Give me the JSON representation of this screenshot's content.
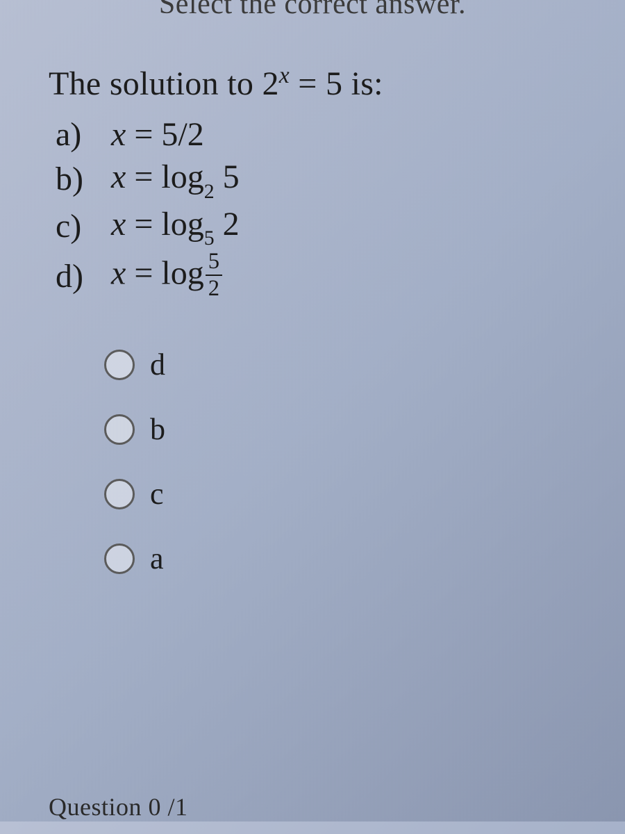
{
  "header": {
    "instruction": "Select the correct answer."
  },
  "question": {
    "stem_prefix": "The solution to ",
    "stem_equation_base": "2",
    "stem_equation_exp": "x",
    "stem_equation_rhs": " = 5",
    "stem_suffix": " is:",
    "choices": {
      "a": {
        "letter": "a)",
        "var": "x",
        "eq": " = ",
        "expr": "5/2"
      },
      "b": {
        "letter": "b)",
        "var": "x",
        "eq": " = ",
        "fn": "log",
        "base": "2",
        "arg": " 5"
      },
      "c": {
        "letter": "c)",
        "var": "x",
        "eq": " = ",
        "fn": "log",
        "base": "5",
        "arg": " 2"
      },
      "d": {
        "letter": "d)",
        "var": "x",
        "eq": " = ",
        "fn": "log",
        "frac_num": "5",
        "frac_den": "2"
      }
    }
  },
  "radio_options": {
    "opt0": "d",
    "opt1": "b",
    "opt2": "c",
    "opt3": "a"
  },
  "footer": {
    "partial_text": "Question 0 /1"
  },
  "styling": {
    "background_gradient_start": "#b8c0d4",
    "background_gradient_end": "#8a96b0",
    "text_color": "#1a1a1a",
    "radio_border_color": "#5a5a5a",
    "question_fontsize": 48,
    "radio_label_fontsize": 44,
    "header_fontsize": 42,
    "radio_diameter": 44
  }
}
